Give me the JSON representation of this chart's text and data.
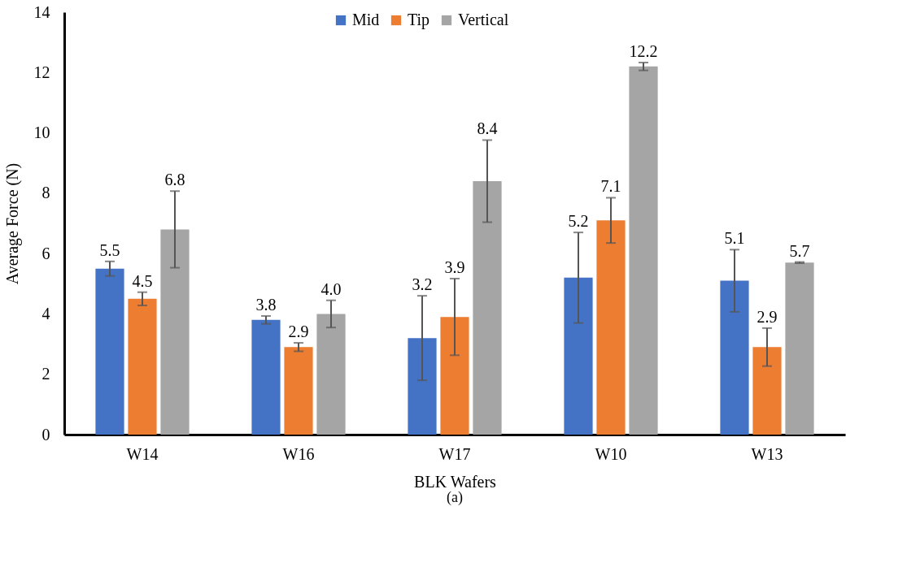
{
  "chart_data": {
    "type": "bar",
    "xlabel": "BLK Wafers",
    "ylabel": "Average Force (N)",
    "categories": [
      "W14",
      "W16",
      "W17",
      "W10",
      "W13"
    ],
    "series": [
      {
        "name": "Mid",
        "color": "#4472c4",
        "values": [
          5.5,
          3.8,
          3.2,
          5.2,
          5.1
        ],
        "errors": [
          0.24,
          0.13,
          1.4,
          1.5,
          1.03
        ],
        "value_labels": [
          "5.5",
          "3.8",
          "3.2",
          "5.2",
          "5.1"
        ]
      },
      {
        "name": "Tip",
        "color": "#ed7d31",
        "values": [
          4.5,
          2.9,
          3.9,
          7.1,
          2.9
        ],
        "errors": [
          0.22,
          0.14,
          1.27,
          0.75,
          0.63
        ],
        "value_labels": [
          "4.5",
          "2.9",
          "3.9",
          "7.1",
          "2.9"
        ]
      },
      {
        "name": "Vertical",
        "color": "#a5a5a5",
        "values": [
          6.8,
          4.0,
          8.4,
          12.2,
          5.7
        ],
        "errors": [
          1.27,
          0.45,
          1.36,
          0.13,
          0.02
        ],
        "value_labels": [
          "6.8",
          "4.0",
          "8.4",
          "12.2",
          "5.7"
        ]
      }
    ],
    "ylim": [
      0,
      14
    ],
    "yticks": [
      0,
      2,
      4,
      6,
      8,
      10,
      12,
      14
    ],
    "grid": false,
    "legend": "top",
    "annotations": [
      "(a)"
    ]
  }
}
